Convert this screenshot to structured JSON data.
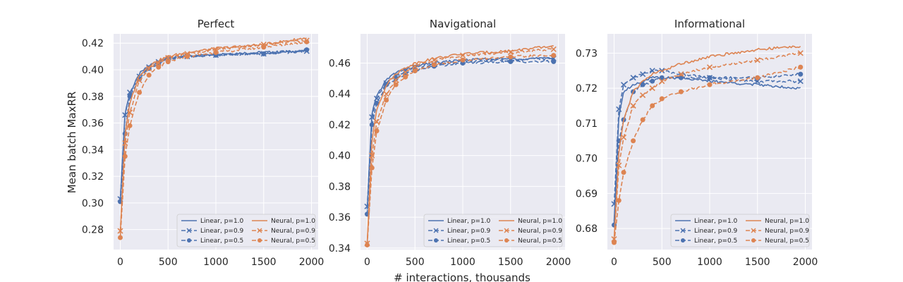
{
  "figure": {
    "shared_xlabel": "# interactions, thousands",
    "shared_ylabel": "Mean batch MaxRR"
  },
  "colors": {
    "linear": "#4c72b0",
    "neural": "#dd8452",
    "panel_bg": "#eaeaf2",
    "grid": "#ffffff"
  },
  "legend_labels": [
    "Linear, p=1.0",
    "Linear, p=0.9",
    "Linear, p=0.5",
    "Neural, p=1.0",
    "Neural, p=0.9",
    "Neural, p=0.5"
  ],
  "chart_data": [
    {
      "type": "line",
      "title": "Perfect",
      "xlabel": "# interactions, thousands",
      "ylabel": "Mean batch MaxRR",
      "xlim": [
        -70,
        2070
      ],
      "ylim": [
        0.265,
        0.427
      ],
      "xticks": [
        0,
        500,
        1000,
        1500,
        2000
      ],
      "yticks": [
        0.28,
        0.3,
        0.32,
        0.34,
        0.36,
        0.38,
        0.4,
        0.42
      ],
      "ytick_labels": [
        "0.28",
        "0.30",
        "0.32",
        "0.34",
        "0.36",
        "0.38",
        "0.40",
        "0.42"
      ],
      "grid": true,
      "legend_position": "lower-right",
      "x": [
        0,
        50,
        100,
        200,
        300,
        400,
        500,
        700,
        1000,
        1500,
        1950
      ],
      "series": [
        {
          "name": "Linear, p=1.0",
          "family": "linear",
          "marker": "none",
          "dash": "solid",
          "values": [
            0.302,
            0.368,
            0.382,
            0.397,
            0.403,
            0.407,
            0.409,
            0.41,
            0.412,
            0.413,
            0.414
          ]
        },
        {
          "name": "Linear, p=0.9",
          "family": "linear",
          "marker": "x",
          "dash": "dashed",
          "values": [
            0.303,
            0.366,
            0.383,
            0.395,
            0.402,
            0.406,
            0.408,
            0.41,
            0.411,
            0.412,
            0.414
          ]
        },
        {
          "name": "Linear, p=0.5",
          "family": "linear",
          "marker": "dot",
          "dash": "dashed",
          "values": [
            0.301,
            0.352,
            0.38,
            0.393,
            0.401,
            0.405,
            0.408,
            0.41,
            0.411,
            0.412,
            0.415
          ]
        },
        {
          "name": "Neural, p=1.0",
          "family": "neural",
          "marker": "none",
          "dash": "solid",
          "values": [
            0.277,
            0.352,
            0.375,
            0.396,
            0.403,
            0.407,
            0.41,
            0.413,
            0.416,
            0.419,
            0.424
          ]
        },
        {
          "name": "Neural, p=0.9",
          "family": "neural",
          "marker": "x",
          "dash": "dashed",
          "values": [
            0.279,
            0.345,
            0.368,
            0.392,
            0.401,
            0.405,
            0.409,
            0.412,
            0.415,
            0.419,
            0.422
          ]
        },
        {
          "name": "Neural, p=0.5",
          "family": "neural",
          "marker": "dot",
          "dash": "dashed",
          "values": [
            0.274,
            0.335,
            0.358,
            0.383,
            0.396,
            0.402,
            0.406,
            0.41,
            0.413,
            0.417,
            0.421
          ]
        }
      ]
    },
    {
      "type": "line",
      "title": "Navigational",
      "xlabel": "# interactions, thousands",
      "ylabel": "",
      "xlim": [
        -70,
        2070
      ],
      "ylim": [
        0.339,
        0.479
      ],
      "xticks": [
        0,
        500,
        1000,
        1500,
        2000
      ],
      "yticks": [
        0.34,
        0.36,
        0.38,
        0.4,
        0.42,
        0.44,
        0.46
      ],
      "ytick_labels": [
        "0.34",
        "0.36",
        "0.38",
        "0.40",
        "0.42",
        "0.44",
        "0.46"
      ],
      "grid": true,
      "legend_position": "lower-right",
      "x": [
        0,
        50,
        100,
        200,
        300,
        400,
        500,
        700,
        1000,
        1500,
        1950
      ],
      "series": [
        {
          "name": "Linear, p=1.0",
          "family": "linear",
          "marker": "none",
          "dash": "solid",
          "values": [
            0.365,
            0.428,
            0.439,
            0.449,
            0.454,
            0.456,
            0.458,
            0.46,
            0.462,
            0.463,
            0.463
          ]
        },
        {
          "name": "Linear, p=0.9",
          "family": "linear",
          "marker": "x",
          "dash": "dashed",
          "values": [
            0.367,
            0.425,
            0.437,
            0.447,
            0.452,
            0.455,
            0.457,
            0.459,
            0.461,
            0.462,
            0.463
          ]
        },
        {
          "name": "Linear, p=0.5",
          "family": "linear",
          "marker": "dot",
          "dash": "dashed",
          "values": [
            0.362,
            0.42,
            0.434,
            0.446,
            0.45,
            0.453,
            0.455,
            0.458,
            0.46,
            0.461,
            0.461
          ]
        },
        {
          "name": "Neural, p=1.0",
          "family": "neural",
          "marker": "none",
          "dash": "solid",
          "values": [
            0.343,
            0.41,
            0.43,
            0.446,
            0.453,
            0.457,
            0.46,
            0.463,
            0.466,
            0.468,
            0.471
          ]
        },
        {
          "name": "Neural, p=0.9",
          "family": "neural",
          "marker": "x",
          "dash": "dashed",
          "values": [
            0.343,
            0.4,
            0.422,
            0.44,
            0.449,
            0.454,
            0.458,
            0.462,
            0.465,
            0.467,
            0.469
          ]
        },
        {
          "name": "Neural, p=0.5",
          "family": "neural",
          "marker": "dot",
          "dash": "dashed",
          "values": [
            0.342,
            0.392,
            0.416,
            0.436,
            0.446,
            0.451,
            0.455,
            0.459,
            0.462,
            0.464,
            0.465
          ]
        }
      ]
    },
    {
      "type": "line",
      "title": "Informational",
      "xlabel": "# interactions, thousands",
      "ylabel": "",
      "xlim": [
        -70,
        2070
      ],
      "ylim": [
        0.674,
        0.7355
      ],
      "xticks": [
        0,
        500,
        1000,
        1500,
        2000
      ],
      "yticks": [
        0.68,
        0.69,
        0.7,
        0.71,
        0.72,
        0.73
      ],
      "ytick_labels": [
        "0.68",
        "0.69",
        "0.70",
        "0.71",
        "0.72",
        "0.73"
      ],
      "grid": true,
      "legend_position": "lower-right",
      "x": [
        0,
        50,
        100,
        200,
        300,
        400,
        500,
        700,
        1000,
        1500,
        1950
      ],
      "series": [
        {
          "name": "Linear, p=1.0",
          "family": "linear",
          "marker": "none",
          "dash": "solid",
          "values": [
            0.682,
            0.712,
            0.719,
            0.721,
            0.722,
            0.723,
            0.723,
            0.723,
            0.722,
            0.721,
            0.72
          ]
        },
        {
          "name": "Linear, p=0.9",
          "family": "linear",
          "marker": "x",
          "dash": "dashed",
          "values": [
            0.687,
            0.714,
            0.721,
            0.723,
            0.724,
            0.725,
            0.725,
            0.724,
            0.723,
            0.722,
            0.722
          ]
        },
        {
          "name": "Linear, p=0.5",
          "family": "linear",
          "marker": "dot",
          "dash": "dashed",
          "values": [
            0.681,
            0.705,
            0.711,
            0.719,
            0.721,
            0.722,
            0.723,
            0.723,
            0.723,
            0.723,
            0.724
          ]
        },
        {
          "name": "Neural, p=1.0",
          "family": "neural",
          "marker": "none",
          "dash": "solid",
          "values": [
            0.677,
            0.702,
            0.711,
            0.719,
            0.722,
            0.724,
            0.725,
            0.727,
            0.729,
            0.731,
            0.732
          ]
        },
        {
          "name": "Neural, p=0.9",
          "family": "neural",
          "marker": "x",
          "dash": "dashed",
          "values": [
            0.677,
            0.698,
            0.706,
            0.715,
            0.718,
            0.72,
            0.722,
            0.724,
            0.726,
            0.728,
            0.73
          ]
        },
        {
          "name": "Neural, p=0.5",
          "family": "neural",
          "marker": "dot",
          "dash": "dashed",
          "values": [
            0.676,
            0.688,
            0.696,
            0.705,
            0.711,
            0.715,
            0.717,
            0.719,
            0.721,
            0.723,
            0.726
          ]
        }
      ]
    }
  ]
}
